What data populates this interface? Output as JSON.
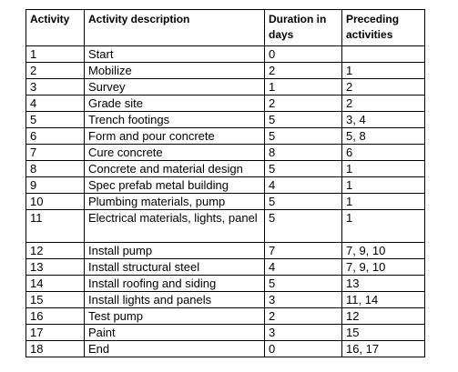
{
  "table": {
    "headers": {
      "activity": "Activity",
      "description": "Activity description",
      "duration": "Duration in days",
      "preceding": "Preceding activities"
    },
    "rows": [
      {
        "activity": "1",
        "description": "Start",
        "duration": "0",
        "preceding": ""
      },
      {
        "activity": "2",
        "description": "Mobilize",
        "duration": "2",
        "preceding": "1"
      },
      {
        "activity": "3",
        "description": "Survey",
        "duration": "1",
        "preceding": "2"
      },
      {
        "activity": "4",
        "description": "Grade site",
        "duration": "2",
        "preceding": "2"
      },
      {
        "activity": "5",
        "description": "Trench footings",
        "duration": "5",
        "preceding": "3, 4"
      },
      {
        "activity": "6",
        "description": "Form and pour concrete",
        "duration": "5",
        "preceding": "5, 8"
      },
      {
        "activity": "7",
        "description": "Cure concrete",
        "duration": "8",
        "preceding": "6"
      },
      {
        "activity": "8",
        "description": "Concrete and material design",
        "duration": "5",
        "preceding": "1"
      },
      {
        "activity": "9",
        "description": "Spec prefab metal building",
        "duration": "4",
        "preceding": "1"
      },
      {
        "activity": "10",
        "description": "Plumbing materials, pump",
        "duration": "5",
        "preceding": "1"
      },
      {
        "activity": "11",
        "description": "Electrical materials, lights, panel",
        "duration": "5",
        "preceding": "1"
      },
      {
        "activity": "12",
        "description": "Install pump",
        "duration": "7",
        "preceding": "7, 9, 10"
      },
      {
        "activity": "13",
        "description": "Install structural steel",
        "duration": "4",
        "preceding": "7, 9, 10"
      },
      {
        "activity": "14",
        "description": "Install roofing and siding",
        "duration": "5",
        "preceding": "13"
      },
      {
        "activity": "15",
        "description": "Install lights and panels",
        "duration": "3",
        "preceding": "11, 14"
      },
      {
        "activity": "16",
        "description": "Test pump",
        "duration": "2",
        "preceding": "12"
      },
      {
        "activity": "17",
        "description": "Paint",
        "duration": "3",
        "preceding": "15"
      },
      {
        "activity": "18",
        "description": "End",
        "duration": "0",
        "preceding": "16, 17"
      }
    ]
  }
}
